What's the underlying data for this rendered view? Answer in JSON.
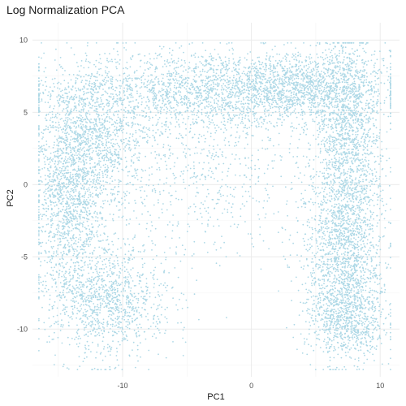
{
  "chart_data": {
    "type": "scatter",
    "title": "Log Normalization PCA",
    "xlabel": "PC1",
    "ylabel": "PC2",
    "xlim": [
      -17,
      11.5
    ],
    "ylim": [
      -13.3,
      11.2
    ],
    "x_ticks": [
      -10,
      0,
      10
    ],
    "y_ticks": [
      -10,
      -5,
      0,
      5,
      10
    ],
    "x_tick_labels": [
      "-10",
      "0",
      "10"
    ],
    "y_tick_labels": [
      "-10",
      "-5",
      "0",
      "5",
      "10"
    ],
    "grid": true,
    "legend": "none",
    "point_color": "#add8e6",
    "series": [
      {
        "name": "",
        "description_of_distribution": "",
        "x": [
          -15,
          -14,
          -13,
          -12,
          -10,
          -8,
          -6,
          -4,
          -2,
          0,
          2,
          4,
          6,
          8,
          9,
          8,
          7,
          6,
          6,
          7,
          8,
          7,
          6,
          -10,
          -11,
          -12,
          -13,
          -14
        ],
        "y": [
          -1,
          2,
          4,
          6,
          7,
          7.5,
          8,
          8.5,
          8.5,
          8,
          7.5,
          7.5,
          7,
          7,
          5,
          2,
          0,
          -3,
          -6,
          -9,
          -10,
          -11,
          -10,
          -10,
          -9,
          -6,
          -4,
          -2
        ]
      }
    ]
  }
}
